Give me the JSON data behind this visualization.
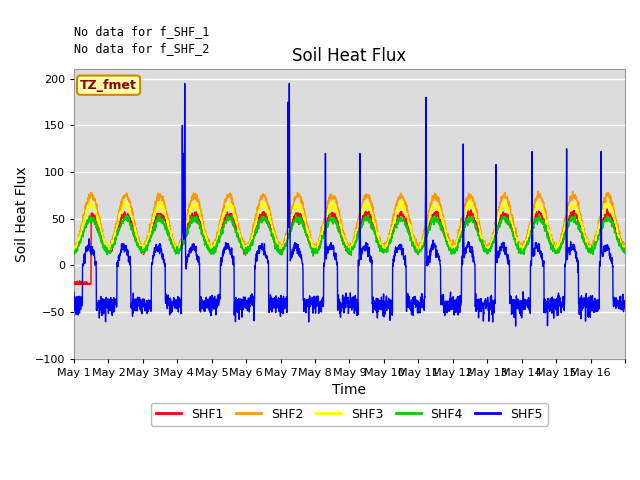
{
  "title": "Soil Heat Flux",
  "xlabel": "Time",
  "ylabel": "Soil Heat Flux",
  "ylim": [
    -100,
    210
  ],
  "yticks": [
    -100,
    -50,
    0,
    50,
    100,
    150,
    200
  ],
  "annotation1": "No data for f_SHF_1",
  "annotation2": "No data for f_SHF_2",
  "tz_label": "TZ_fmet",
  "legend_labels": [
    "SHF1",
    "SHF2",
    "SHF3",
    "SHF4",
    "SHF5"
  ],
  "line_colors": [
    "#ff0000",
    "#ff9900",
    "#ffff00",
    "#00cc00",
    "#0000ff"
  ],
  "bg_color": "#dcdcdc",
  "fig_bg": "#ffffff",
  "xtick_labels": [
    "May 1",
    "May 2",
    "May 3",
    "May 4",
    "May 5",
    "May 6",
    "May 7",
    "May 8",
    "May 9",
    "May 10",
    "May 11",
    "May 12",
    "May 13",
    "May 14",
    "May 15",
    "May 16"
  ],
  "n_days": 16,
  "pts_per_day": 144
}
